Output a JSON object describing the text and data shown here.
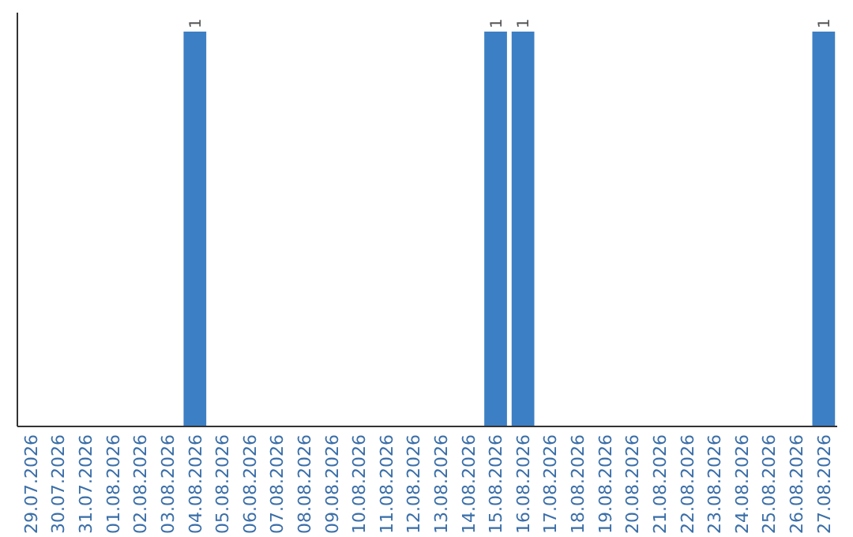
{
  "chart_data": {
    "type": "bar",
    "categories": [
      "29.07.2026",
      "30.07.2026",
      "31.07.2026",
      "01.08.2026",
      "02.08.2026",
      "03.08.2026",
      "04.08.2026",
      "05.08.2026",
      "06.08.2026",
      "07.08.2026",
      "08.08.2026",
      "09.08.2026",
      "10.08.2026",
      "11.08.2026",
      "12.08.2026",
      "13.08.2026",
      "14.08.2026",
      "15.08.2026",
      "16.08.2026",
      "17.08.2026",
      "18.08.2026",
      "19.08.2026",
      "20.08.2026",
      "21.08.2026",
      "22.08.2026",
      "23.08.2026",
      "24.08.2026",
      "25.08.2026",
      "26.08.2026",
      "27.08.2026"
    ],
    "values": [
      0,
      0,
      0,
      0,
      0,
      0,
      1,
      0,
      0,
      0,
      0,
      0,
      0,
      0,
      0,
      0,
      0,
      1,
      1,
      0,
      0,
      0,
      0,
      0,
      0,
      0,
      0,
      0,
      0,
      1
    ],
    "value_labels": [
      null,
      null,
      null,
      null,
      null,
      null,
      "1",
      null,
      null,
      null,
      null,
      null,
      null,
      null,
      null,
      null,
      null,
      "1",
      "1",
      null,
      null,
      null,
      null,
      null,
      null,
      null,
      null,
      null,
      null,
      "1"
    ],
    "color": "#3d7fc4"
  }
}
